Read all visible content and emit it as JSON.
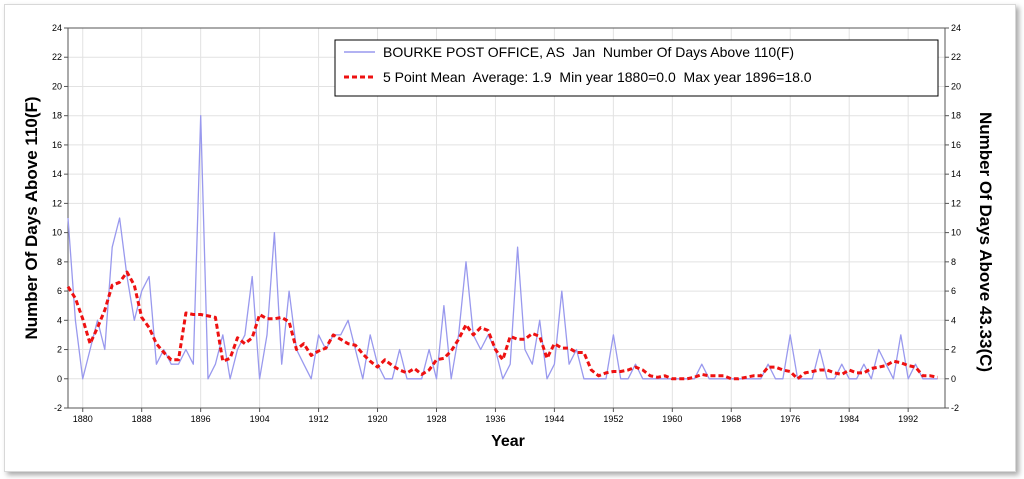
{
  "chart_data": {
    "type": "line",
    "title": "",
    "xlabel": "Year",
    "ylabel": "Number Of Days Above 110(F)",
    "ylabel_right": "Number Of Days Above 43.33(C)",
    "xlim": [
      1878,
      1997
    ],
    "ylim": [
      -2,
      24
    ],
    "y2lim": [
      -2,
      24
    ],
    "x_ticks": [
      1880,
      1888,
      1896,
      1904,
      1912,
      1920,
      1928,
      1936,
      1944,
      1952,
      1960,
      1968,
      1976,
      1984,
      1992
    ],
    "y_ticks": [
      -2,
      0,
      2,
      4,
      6,
      8,
      10,
      12,
      14,
      16,
      18,
      20,
      22,
      24
    ],
    "grid": true,
    "legend_position": "top-right",
    "x": [
      1878,
      1879,
      1880,
      1881,
      1882,
      1883,
      1884,
      1885,
      1886,
      1887,
      1888,
      1889,
      1890,
      1891,
      1892,
      1893,
      1894,
      1895,
      1896,
      1897,
      1898,
      1899,
      1900,
      1901,
      1902,
      1903,
      1904,
      1905,
      1906,
      1907,
      1908,
      1909,
      1910,
      1911,
      1912,
      1913,
      1914,
      1915,
      1916,
      1917,
      1918,
      1919,
      1920,
      1921,
      1922,
      1923,
      1924,
      1925,
      1926,
      1927,
      1928,
      1929,
      1930,
      1931,
      1932,
      1933,
      1934,
      1935,
      1936,
      1937,
      1938,
      1939,
      1940,
      1941,
      1942,
      1943,
      1944,
      1945,
      1946,
      1947,
      1948,
      1949,
      1950,
      1951,
      1952,
      1953,
      1954,
      1955,
      1956,
      1957,
      1958,
      1959,
      1960,
      1961,
      1962,
      1963,
      1964,
      1965,
      1966,
      1967,
      1968,
      1969,
      1970,
      1971,
      1972,
      1973,
      1974,
      1975,
      1976,
      1977,
      1978,
      1979,
      1980,
      1981,
      1982,
      1983,
      1984,
      1985,
      1986,
      1987,
      1988,
      1989,
      1990,
      1991,
      1992,
      1993,
      1994,
      1995,
      1996
    ],
    "series": [
      {
        "name": "BOURKE POST OFFICE, AS  Jan  Number Of Days Above 110(F)",
        "color": "#9999ee",
        "style": "solid",
        "values": [
          11,
          4,
          0,
          2,
          4,
          2,
          9,
          11,
          7,
          4,
          6,
          7,
          1,
          2,
          1,
          1,
          2,
          1,
          18,
          0,
          1,
          3,
          0,
          2,
          3,
          7,
          0,
          3,
          10,
          1,
          6,
          2,
          1,
          0,
          3,
          2,
          3,
          3,
          4,
          2,
          0,
          3,
          1,
          0,
          0,
          2,
          0,
          0,
          0,
          2,
          0,
          5,
          0,
          3,
          8,
          3,
          2,
          3,
          2,
          0,
          1,
          9,
          2,
          1,
          4,
          0,
          1,
          6,
          1,
          2,
          0,
          0,
          0,
          0,
          3,
          0,
          0,
          1,
          0,
          0,
          0,
          0,
          0,
          0,
          0,
          0,
          1,
          0,
          0,
          0,
          0,
          0,
          0,
          0,
          0,
          1,
          0,
          0,
          3,
          0,
          0,
          0,
          2,
          0,
          0,
          1,
          0,
          0,
          1,
          0,
          2,
          1,
          0,
          3,
          0,
          1,
          0,
          0,
          0
        ]
      },
      {
        "name": "5 Point Mean  Average: 1.9  Min year 1880=0.0  Max year 1896=18.0",
        "color": "#ee1111",
        "style": "dashed",
        "values": [
          6.3,
          5.5,
          4.1,
          2.4,
          3.5,
          4.7,
          6.4,
          6.6,
          7.3,
          6.4,
          4.2,
          3.5,
          2.4,
          1.8,
          1.3,
          1.3,
          4.5,
          4.4,
          4.4,
          4.3,
          4.2,
          1.2,
          1.4,
          2.8,
          2.4,
          2.8,
          4.4,
          4.1,
          4.1,
          4.2,
          3.9,
          2.0,
          2.4,
          1.6,
          1.9,
          2.1,
          3.0,
          2.7,
          2.4,
          2.3,
          1.7,
          1.2,
          0.8,
          1.3,
          0.9,
          0.6,
          0.4,
          0.7,
          0.3,
          0.6,
          1.3,
          1.4,
          1.9,
          2.7,
          3.7,
          3.0,
          3.5,
          3.3,
          2.0,
          1.3,
          2.9,
          2.7,
          2.7,
          3.1,
          2.9,
          1.4,
          2.4,
          2.1,
          2.1,
          1.8,
          1.8,
          0.6,
          0.2,
          0.4,
          0.5,
          0.5,
          0.6,
          0.8,
          0.6,
          0.2,
          0.1,
          0.2,
          0.0,
          0.0,
          0.0,
          0.1,
          0.3,
          0.2,
          0.2,
          0.2,
          0.0,
          0.0,
          0.1,
          0.2,
          0.2,
          0.8,
          0.8,
          0.6,
          0.5,
          0.0,
          0.4,
          0.5,
          0.6,
          0.6,
          0.4,
          0.3,
          0.6,
          0.4,
          0.4,
          0.7,
          0.8,
          0.9,
          1.2,
          1.1,
          0.9,
          0.8,
          0.2,
          0.2,
          0.1
        ]
      }
    ]
  }
}
